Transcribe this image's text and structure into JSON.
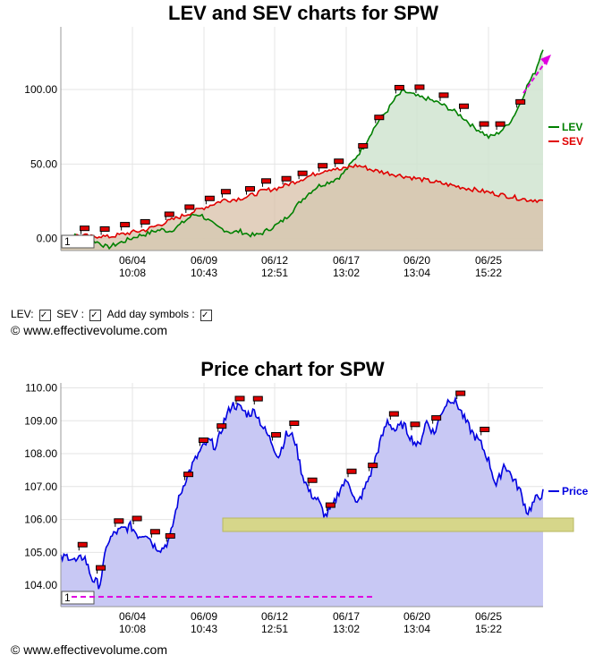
{
  "chart_data": [
    {
      "type": "area",
      "title": "LEV and SEV charts for SPW",
      "x_tick_labels": [
        [
          "06/04",
          "10:08"
        ],
        [
          "06/09",
          "10:43"
        ],
        [
          "06/12",
          "12:51"
        ],
        [
          "06/17",
          "13:02"
        ],
        [
          "06/20",
          "13:04"
        ],
        [
          "06/25",
          "15:22"
        ]
      ],
      "y_ticks": [
        "0.00",
        "50.00",
        "100.00"
      ],
      "ylim": [
        -8,
        142
      ],
      "legend_placement": "right",
      "series": [
        {
          "name": "LEV",
          "color": "#008000",
          "values": [
            0,
            1,
            2,
            1,
            -1,
            -3,
            -6,
            -4,
            -2,
            0,
            2,
            3,
            5,
            6,
            5,
            8,
            12,
            16,
            16,
            12,
            8,
            6,
            4,
            5,
            3,
            2,
            4,
            7,
            10,
            14,
            20,
            26,
            31,
            35,
            37,
            39,
            42,
            48,
            55,
            62,
            72,
            80,
            86,
            94,
            99,
            97,
            95,
            94,
            92,
            90,
            87,
            84,
            80,
            75,
            72,
            68,
            70,
            74,
            80,
            90,
            103,
            112,
            128
          ]
        },
        {
          "name": "SEV",
          "color": "#e00000",
          "values": [
            0,
            1,
            2,
            2,
            1,
            2,
            1,
            2,
            3,
            4,
            5,
            6,
            8,
            10,
            12,
            14,
            16,
            18,
            20,
            22,
            24,
            26,
            26,
            27,
            28,
            30,
            32,
            33,
            34,
            36,
            38,
            40,
            42,
            44,
            46,
            47,
            46,
            48,
            49,
            48,
            46,
            45,
            44,
            43,
            42,
            41,
            40,
            39,
            38,
            37,
            36,
            35,
            34,
            33,
            32,
            31,
            30,
            29,
            28,
            27,
            26,
            26,
            25
          ]
        }
      ],
      "day_marker_label": "1",
      "colors": {
        "lev": "#008000",
        "sev": "#e00000",
        "lev_fill": "#d0e4d0",
        "sev_fill": "#d8c0a8",
        "arrow": "#e000e0"
      }
    },
    {
      "type": "area",
      "title": "Price chart for SPW",
      "x_tick_labels": [
        [
          "06/04",
          "10:08"
        ],
        [
          "06/09",
          "10:43"
        ],
        [
          "06/12",
          "12:51"
        ],
        [
          "06/17",
          "13:02"
        ],
        [
          "06/20",
          "13:04"
        ],
        [
          "06/25",
          "15:22"
        ]
      ],
      "y_ticks": [
        "104.00",
        "105.00",
        "106.00",
        "107.00",
        "108.00",
        "109.00",
        "110.00"
      ],
      "ylim": [
        103.35,
        110.15
      ],
      "legend_placement": "right",
      "series": [
        {
          "name": "Price",
          "color": "#0000e0",
          "values": [
            104.8,
            104.9,
            104.7,
            104.9,
            104.2,
            104.0,
            105.3,
            105.6,
            105.7,
            105.8,
            105.5,
            105.6,
            105.2,
            105.1,
            105.4,
            106.5,
            107.2,
            107.7,
            108.1,
            108.4,
            108.2,
            109.0,
            109.5,
            109.4,
            109.2,
            109.3,
            108.8,
            108.4,
            107.9,
            108.6,
            108.5,
            107.4,
            106.8,
            106.6,
            106.1,
            106.4,
            107.0,
            107.2,
            106.4,
            106.9,
            107.5,
            108.3,
            109.0,
            108.7,
            108.9,
            108.5,
            108.2,
            109.0,
            108.6,
            109.3,
            109.7,
            109.5,
            109.0,
            108.6,
            108.3,
            107.8,
            107.0,
            107.7,
            107.3,
            106.9,
            106.2,
            106.6,
            106.8
          ]
        }
      ],
      "day_marker_label": "1",
      "colors": {
        "price": "#0000e0",
        "price_fill": "#c8c8f4",
        "zone": "#d6d68a",
        "dash": "#e000e0"
      }
    }
  ],
  "controls": {
    "lev_label": "LEV:",
    "sev_label": "SEV :",
    "day_symbols_label": "Add day symbols :",
    "check": "✓"
  },
  "copyright": "© www.effectivevolume.com"
}
